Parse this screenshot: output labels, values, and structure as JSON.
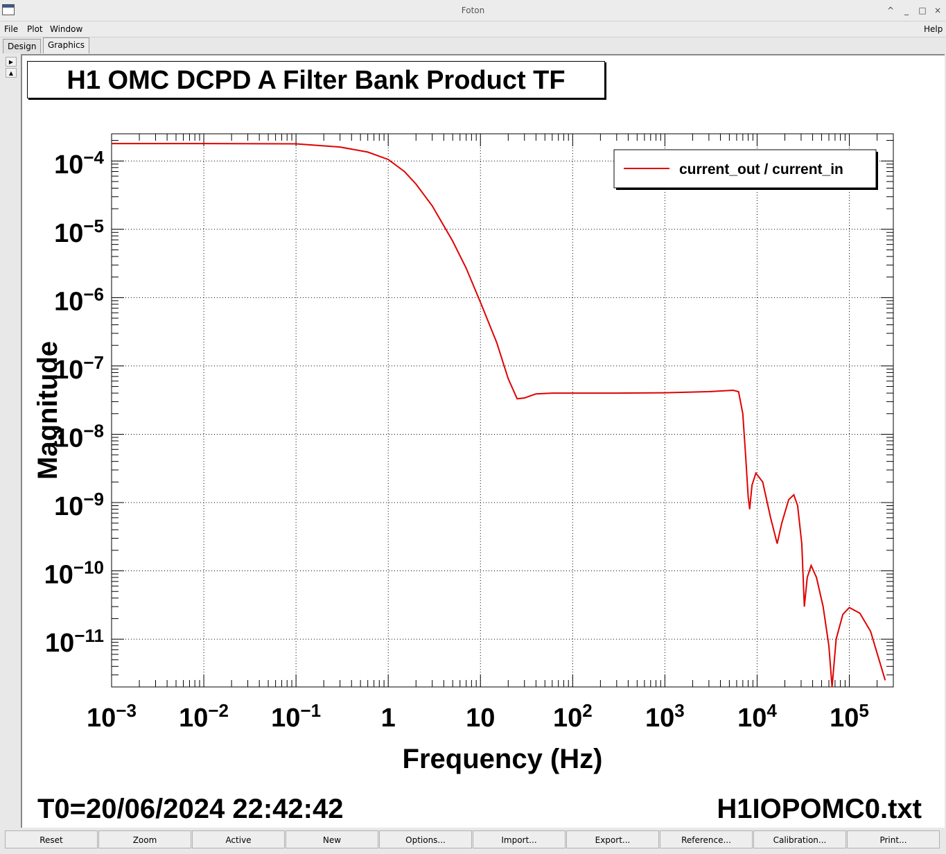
{
  "window": {
    "title": "Foton",
    "controls": [
      "^",
      "_",
      "□",
      "×"
    ]
  },
  "menu": {
    "file": "File",
    "plot": "Plot",
    "window": "Window",
    "help": "Help"
  },
  "tabs": [
    "Design",
    "Graphics"
  ],
  "plot": {
    "title": "H1 OMC DCPD A Filter Bank Product TF",
    "legend_label": "current_out / current_in",
    "footer_left": "T0=20/06/2024 22:42:42",
    "footer_right": "H1IOPOMC0.txt"
  },
  "chart_data": {
    "type": "line",
    "title": "H1 OMC DCPD A Filter Bank Product TF",
    "xlabel": "Frequency (Hz)",
    "ylabel": "Magnitude",
    "xscale": "log",
    "yscale": "log",
    "xlim": [
      0.001,
      300000
    ],
    "ylim": [
      2e-12,
      0.00025
    ],
    "x_tick_labels": [
      {
        "value": 0.001,
        "base": "10",
        "exp": "−3"
      },
      {
        "value": 0.01,
        "base": "10",
        "exp": "−2"
      },
      {
        "value": 0.1,
        "base": "10",
        "exp": "−1"
      },
      {
        "value": 1,
        "base": "1",
        "exp": ""
      },
      {
        "value": 10,
        "base": "10",
        "exp": ""
      },
      {
        "value": 100,
        "base": "10",
        "exp": "2"
      },
      {
        "value": 1000,
        "base": "10",
        "exp": "3"
      },
      {
        "value": 10000,
        "base": "10",
        "exp": "4"
      },
      {
        "value": 100000,
        "base": "10",
        "exp": "5"
      }
    ],
    "y_tick_labels": [
      {
        "value": 0.0001,
        "base": "10",
        "exp": "−4"
      },
      {
        "value": 1e-05,
        "base": "10",
        "exp": "−5"
      },
      {
        "value": 1e-06,
        "base": "10",
        "exp": "−6"
      },
      {
        "value": 1e-07,
        "base": "10",
        "exp": "−7"
      },
      {
        "value": 1e-08,
        "base": "10",
        "exp": "−8"
      },
      {
        "value": 1e-09,
        "base": "10",
        "exp": "−9"
      },
      {
        "value": 1e-10,
        "base": "10",
        "exp": "−10"
      },
      {
        "value": 1e-11,
        "base": "10",
        "exp": "−11"
      }
    ],
    "grid": true,
    "legend_position": "top-right",
    "series": [
      {
        "name": "current_out / current_in",
        "color": "#e00000",
        "points": [
          [
            0.001,
            0.00018
          ],
          [
            0.01,
            0.00018
          ],
          [
            0.1,
            0.000178
          ],
          [
            0.3,
            0.00016
          ],
          [
            0.6,
            0.000135
          ],
          [
            1,
            0.000105
          ],
          [
            1.5,
            7e-05
          ],
          [
            2,
            4.6e-05
          ],
          [
            3,
            2.2e-05
          ],
          [
            5,
            6.7e-06
          ],
          [
            7,
            2.7e-06
          ],
          [
            10,
            8.5e-07
          ],
          [
            15,
            2.2e-07
          ],
          [
            20,
            6.5e-08
          ],
          [
            25,
            3.3e-08
          ],
          [
            30,
            3.4e-08
          ],
          [
            40,
            3.9e-08
          ],
          [
            60,
            4e-08
          ],
          [
            100,
            4e-08
          ],
          [
            300,
            4e-08
          ],
          [
            1000,
            4.05e-08
          ],
          [
            3000,
            4.2e-08
          ],
          [
            5500,
            4.4e-08
          ],
          [
            6300,
            4.2e-08
          ],
          [
            7000,
            2e-08
          ],
          [
            7500,
            5e-09
          ],
          [
            8000,
            1.2e-09
          ],
          [
            8300,
            8e-10
          ],
          [
            8800,
            1.8e-09
          ],
          [
            9700,
            2.7e-09
          ],
          [
            11500,
            2e-09
          ],
          [
            14000,
            6e-10
          ],
          [
            16500,
            2.5e-10
          ],
          [
            18500,
            5e-10
          ],
          [
            22000,
            1.1e-09
          ],
          [
            25000,
            1.3e-09
          ],
          [
            27500,
            9e-10
          ],
          [
            30500,
            2.5e-10
          ],
          [
            32500,
            3e-11
          ],
          [
            35000,
            8e-11
          ],
          [
            38500,
            1.2e-10
          ],
          [
            44000,
            8e-11
          ],
          [
            52000,
            3e-11
          ],
          [
            60000,
            8e-12
          ],
          [
            65000,
            2e-12
          ],
          [
            72000,
            1e-11
          ],
          [
            85000,
            2.3e-11
          ],
          [
            100000,
            2.9e-11
          ],
          [
            130000,
            2.4e-11
          ],
          [
            170000,
            1.3e-11
          ],
          [
            210000,
            5e-12
          ],
          [
            245000,
            2.5e-12
          ]
        ]
      }
    ]
  },
  "buttons": [
    "Reset",
    "Zoom",
    "Active",
    "New",
    "Options...",
    "Import...",
    "Export...",
    "Reference...",
    "Calibration...",
    "Print..."
  ]
}
